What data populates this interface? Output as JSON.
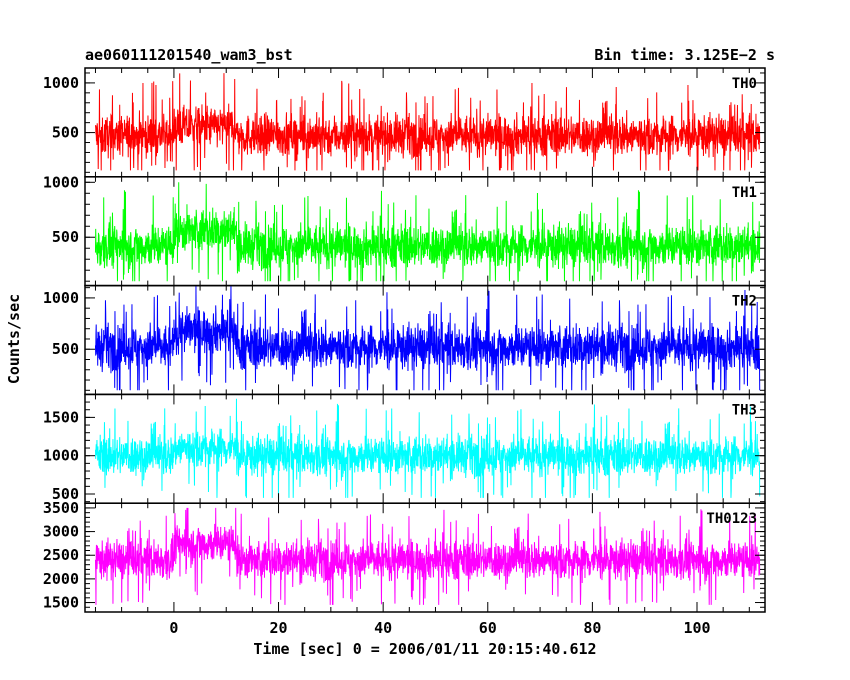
{
  "chart_data": {
    "type": "line",
    "title_left": "ae060111201540_wam3_bst",
    "title_right": "Bin time: 3.125E−2 s",
    "xlabel": "Time [sec] 0 = 2006/01/11 20:15:40.612",
    "ylabel": "Counts/sec",
    "xlim": [
      -17,
      113
    ],
    "x_ticks": [
      0,
      20,
      40,
      60,
      80,
      100
    ],
    "x_tick_labels": [
      "0",
      "20",
      "40",
      "60",
      "80",
      "100"
    ],
    "data_range_x": [
      -15,
      112
    ],
    "panels": [
      {
        "name": "TH0",
        "color": "#ff0000",
        "ylim": [
          55,
          1150
        ],
        "y_ticks": [
          500,
          1000
        ],
        "y_tick_labels": [
          "500",
          "1000"
        ],
        "summary": {
          "mean": 470,
          "spread": 190,
          "low": 120,
          "high": 1120,
          "hump_start": 0,
          "hump_end": 12,
          "hump_level": 560
        }
      },
      {
        "name": "TH1",
        "color": "#00ff00",
        "ylim": [
          60,
          1050
        ],
        "y_ticks": [
          500,
          1000
        ],
        "y_tick_labels": [
          "500",
          "1000"
        ],
        "summary": {
          "mean": 420,
          "spread": 180,
          "low": 100,
          "high": 1000,
          "hump_start": 0,
          "hump_end": 12,
          "hump_level": 560
        }
      },
      {
        "name": "TH2",
        "color": "#0000ff",
        "ylim": [
          60,
          1120
        ],
        "y_ticks": [
          500,
          1000
        ],
        "y_tick_labels": [
          "500",
          "1000"
        ],
        "summary": {
          "mean": 520,
          "spread": 200,
          "low": 100,
          "high": 1120,
          "hump_start": 0,
          "hump_end": 12,
          "hump_level": 680
        }
      },
      {
        "name": "TH3",
        "color": "#00ffff",
        "ylim": [
          380,
          1800
        ],
        "y_ticks": [
          500,
          1000,
          1500
        ],
        "y_tick_labels": [
          "500",
          "1000",
          "1500"
        ],
        "summary": {
          "mean": 1000,
          "spread": 240,
          "low": 450,
          "high": 1750,
          "hump_start": 0,
          "hump_end": 12,
          "hump_level": 1100
        }
      },
      {
        "name": "TH0123",
        "color": "#ff00ff",
        "ylim": [
          1300,
          3600
        ],
        "y_ticks": [
          1500,
          2000,
          2500,
          3000,
          3500
        ],
        "y_tick_labels": [
          "1500",
          "2000",
          "2500",
          "3000",
          "3500"
        ],
        "summary": {
          "mean": 2400,
          "spread": 380,
          "low": 1450,
          "high": 3500,
          "hump_start": 0,
          "hump_end": 12,
          "hump_level": 2750
        }
      }
    ]
  }
}
